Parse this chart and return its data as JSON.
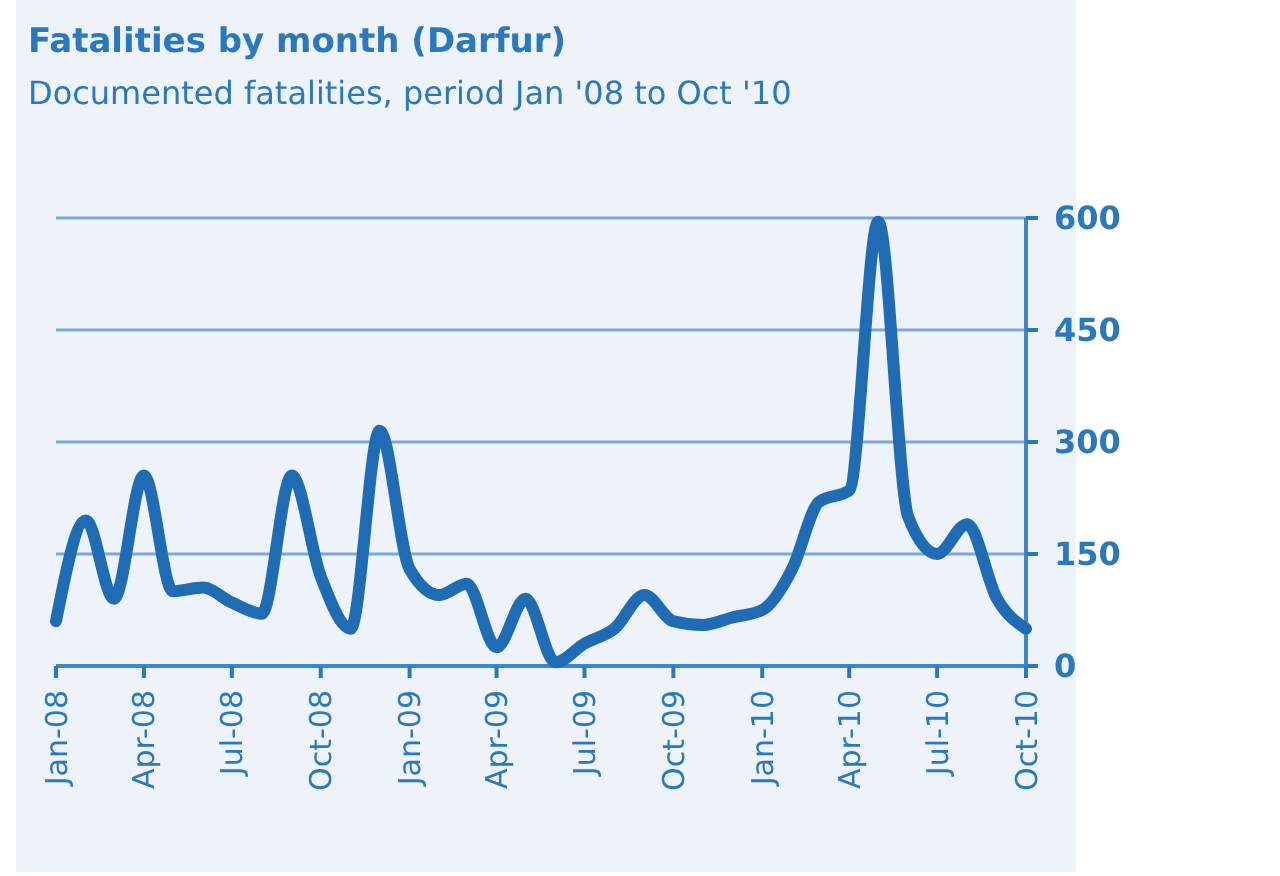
{
  "chart_data": {
    "type": "line",
    "title": "Fatalities by month (Darfur)",
    "subtitle": "Documented fatalities, period Jan '08 to Oct '10",
    "x": [
      "2008-01",
      "2008-02",
      "2008-03",
      "2008-04",
      "2008-05",
      "2008-06",
      "2008-07",
      "2008-08",
      "2008-09",
      "2008-10",
      "2008-11",
      "2008-12",
      "2009-01",
      "2009-02",
      "2009-03",
      "2009-04",
      "2009-05",
      "2009-06",
      "2009-07",
      "2009-08",
      "2009-09",
      "2009-10",
      "2009-11",
      "2009-12",
      "2010-01",
      "2010-02",
      "2010-03",
      "2010-04",
      "2010-05",
      "2010-06",
      "2010-07",
      "2010-08",
      "2010-09",
      "2010-10"
    ],
    "series": [
      {
        "color": "#1f6cb4",
        "values": [
          60,
          195,
          90,
          255,
          100,
          105,
          85,
          70,
          255,
          120,
          50,
          315,
          130,
          95,
          110,
          25,
          90,
          5,
          30,
          50,
          95,
          60,
          55,
          65,
          75,
          130,
          220,
          235,
          595,
          200,
          150,
          190,
          90,
          50
        ]
      }
    ],
    "xlim": [
      "2008-01",
      "2010-10"
    ],
    "xticks": [
      {
        "value": "2008-01",
        "label": "Jan-08"
      },
      {
        "value": "2008-04",
        "label": "Apr-08"
      },
      {
        "value": "2008-07",
        "label": "Jul-08"
      },
      {
        "value": "2008-10",
        "label": "Oct-08"
      },
      {
        "value": "2009-01",
        "label": "Jan-09"
      },
      {
        "value": "2009-04",
        "label": "Apr-09"
      },
      {
        "value": "2009-07",
        "label": "Jul-09"
      },
      {
        "value": "2009-10",
        "label": "Oct-09"
      },
      {
        "value": "2010-01",
        "label": "Jan-10"
      },
      {
        "value": "2010-04",
        "label": "Apr-10"
      },
      {
        "value": "2010-07",
        "label": "Jul-10"
      },
      {
        "value": "2010-10",
        "label": "Oct-10"
      }
    ],
    "ylim": [
      0,
      600
    ],
    "yticks": [
      0,
      150,
      300,
      450,
      600
    ],
    "grid": "y",
    "marker": "none",
    "line_style": "solid"
  }
}
